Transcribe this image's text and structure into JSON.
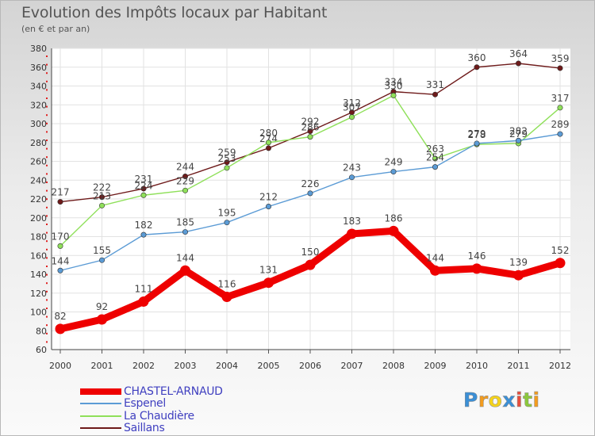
{
  "title": "Evolution des Impôts locaux par Habitant",
  "subtitle": "(en € et par an)",
  "logo": {
    "text": "Proxiti",
    "letters": [
      "P",
      "r",
      "o",
      "x",
      "i",
      "t",
      "i"
    ],
    "colors": [
      "#3b8fd6",
      "#f39c1e",
      "#f5d31b",
      "#3b8fd6",
      "#e84e3c",
      "#8cc83c",
      "#f39c1e"
    ]
  },
  "chart_data": {
    "type": "line",
    "x": [
      "2000",
      "2001",
      "2002",
      "2003",
      "2004",
      "2005",
      "2006",
      "2007",
      "2008",
      "2009",
      "2010",
      "2011",
      "2012"
    ],
    "ylim": [
      60,
      380
    ],
    "yticks": [
      60,
      80,
      100,
      120,
      140,
      160,
      180,
      200,
      220,
      240,
      260,
      280,
      300,
      320,
      340,
      360,
      380
    ],
    "grid": true,
    "legend_position": "bottom-left",
    "series": [
      {
        "name": "Saillans",
        "color": "#6e1a1a",
        "values": [
          217,
          222,
          231,
          244,
          259,
          274,
          292,
          312,
          334,
          331,
          360,
          364,
          359
        ]
      },
      {
        "name": "La Chaudière",
        "color": "#8fe05a",
        "values": [
          170,
          213,
          224,
          229,
          253,
          280,
          286,
          307,
          330,
          263,
          278,
          279,
          317
        ]
      },
      {
        "name": "Espenel",
        "color": "#5b9bd5",
        "values": [
          144,
          155,
          182,
          185,
          195,
          212,
          226,
          243,
          249,
          254,
          279,
          282,
          289
        ]
      },
      {
        "name": "CHASTEL-ARNAUD",
        "color": "#ee0000",
        "values": [
          82,
          92,
          111,
          144,
          116,
          131,
          150,
          183,
          186,
          144,
          146,
          139,
          152
        ]
      }
    ],
    "legend": [
      "CHASTEL-ARNAUD",
      "Espenel",
      "La Chaudière",
      "Saillans"
    ]
  }
}
